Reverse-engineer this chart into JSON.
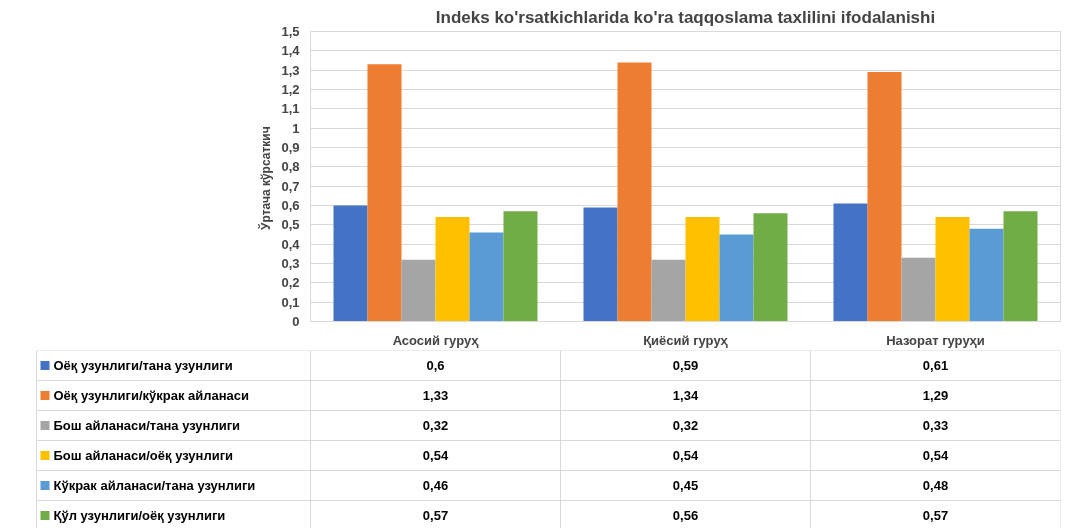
{
  "chart_data": {
    "type": "bar",
    "title": "Indeks ko'rsatkichlarida ko'ra taqqoslama taxlilini ifodalanishi",
    "ylabel": "Ўртача  кўрсаткич",
    "categories": [
      "Асосий гуруҳ",
      "Қиёсий гуруҳ",
      "Назорат гуруҳи"
    ],
    "series": [
      {
        "name": "Оёқ узунлиги/тана  узунлиги",
        "color": "#4472c4",
        "values": [
          0.6,
          0.59,
          0.61
        ],
        "value_labels": [
          "0,6",
          "0,59",
          "0,61"
        ]
      },
      {
        "name": "Оёқ узунлиги/кўкрак  айланаси",
        "color": "#ed7d31",
        "values": [
          1.33,
          1.34,
          1.29
        ],
        "value_labels": [
          "1,33",
          "1,34",
          "1,29"
        ]
      },
      {
        "name": "Бош  айланаси/тана  узунлиги",
        "color": "#a5a5a5",
        "values": [
          0.32,
          0.32,
          0.33
        ],
        "value_labels": [
          "0,32",
          "0,32",
          "0,33"
        ]
      },
      {
        "name": "Бош айланаси/оёқ  узунлиги",
        "color": "#ffc000",
        "values": [
          0.54,
          0.54,
          0.54
        ],
        "value_labels": [
          "0,54",
          "0,54",
          "0,54"
        ]
      },
      {
        "name": "Кўкрак  айланаси/тана  узунлиги",
        "color": "#5b9bd5",
        "values": [
          0.46,
          0.45,
          0.48
        ],
        "value_labels": [
          "0,46",
          "0,45",
          "0,48"
        ]
      },
      {
        "name": "Қўл узунлиги/оёқ узунлиги",
        "color": "#70ad47",
        "values": [
          0.57,
          0.56,
          0.57
        ],
        "value_labels": [
          "0,57",
          "0,56",
          "0,57"
        ]
      }
    ],
    "ylim": [
      0,
      1.5
    ],
    "yticks": [
      0,
      {
        "value": 0.1,
        "label": "0,1"
      },
      {
        "value": 0.2,
        "label": "0,2"
      },
      {
        "value": 0.3,
        "label": "0,3"
      },
      {
        "value": 0.4,
        "label": "0,4"
      },
      {
        "value": 0.5,
        "label": "0,5"
      },
      {
        "value": 0.6,
        "label": "0,6"
      },
      {
        "value": 0.7,
        "label": "0,7"
      },
      {
        "value": 0.8,
        "label": "0,8"
      },
      {
        "value": 0.9,
        "label": "0,9"
      },
      1,
      {
        "value": 1.1,
        "label": "1,1"
      },
      {
        "value": 1.2,
        "label": "1,2"
      },
      {
        "value": 1.3,
        "label": "1,3"
      },
      {
        "value": 1.4,
        "label": "1,4"
      },
      {
        "value": 1.5,
        "label": "1,5"
      }
    ],
    "grid": "y",
    "legend": "bottom"
  }
}
